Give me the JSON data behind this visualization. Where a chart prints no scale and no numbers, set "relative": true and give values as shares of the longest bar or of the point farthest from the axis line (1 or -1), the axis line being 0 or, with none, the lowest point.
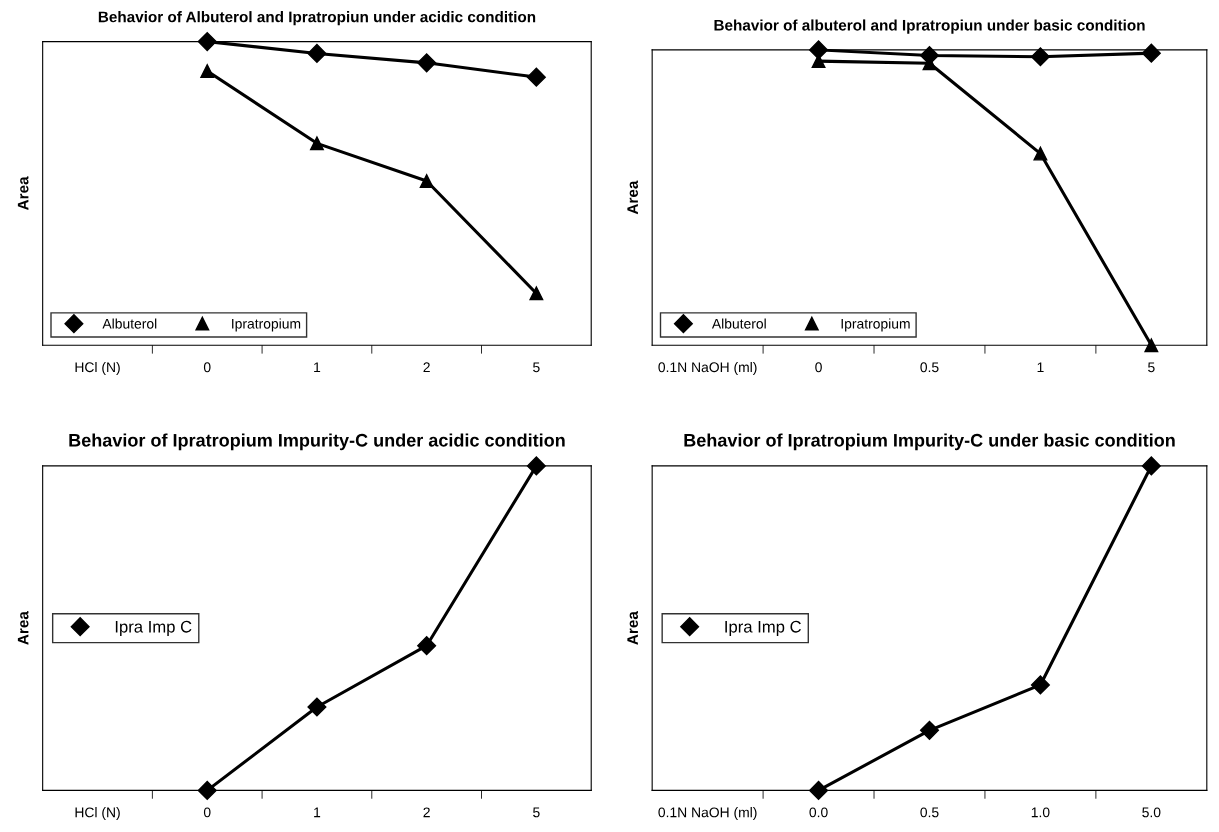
{
  "chart_data": [
    {
      "type": "line",
      "title": "Behavior of Albuterol and Ipratropiun under acidic condition",
      "ylabel": "Area",
      "relative": true,
      "categories": [
        "HCl (N)",
        "0",
        "1",
        "2",
        "5"
      ],
      "series": [
        {
          "name": "Albuterol",
          "color": "#000000",
          "marker": "diamond",
          "values": [
            null,
            1,
            0.961,
            0.93,
            0.883
          ]
        },
        {
          "name": "Ipratropium",
          "color": "#000000",
          "marker": "triangle",
          "values": [
            null,
            0.903,
            0.665,
            0.541,
            0.171
          ]
        }
      ],
      "legend": "bottom left",
      "grid": false
    },
    {
      "type": "line",
      "title": "Behavior of albuterol and Ipratropiun under basic condition",
      "ylabel": "Area",
      "relative": true,
      "categories": [
        "0.1N NaOH (ml)",
        "0",
        "0.5",
        "1",
        "5"
      ],
      "series": [
        {
          "name": "Albuterol",
          "color": "#000000",
          "marker": "diamond",
          "values": [
            null,
            1,
            0.981,
            0.977,
            0.989
          ]
        },
        {
          "name": "Ipratropium",
          "color": "#000000",
          "marker": "triangle",
          "values": [
            null,
            0.962,
            0.955,
            0.649,
            0
          ]
        }
      ],
      "legend": "bottom left",
      "grid": false
    },
    {
      "type": "line",
      "title": "Behavior of Ipratropium Impurity-C under acidic condition",
      "ylabel": "Area",
      "relative": true,
      "categories": [
        "HCl (N)",
        "0",
        "1",
        "2",
        "5"
      ],
      "series": [
        {
          "name": "Ipra Imp C",
          "color": "#000000",
          "marker": "diamond",
          "values": [
            null,
            0,
            0.257,
            0.446,
            1
          ]
        }
      ],
      "legend": "left",
      "grid": false
    },
    {
      "type": "line",
      "title": "Behavior of Ipratropium Impurity-C under basic condition",
      "ylabel": "Area",
      "relative": true,
      "categories": [
        "0.1N NaOH (ml)",
        "0.0",
        "0.5",
        "1.0",
        "5.0"
      ],
      "series": [
        {
          "name": "Ipra Imp C",
          "color": "#000000",
          "marker": "diamond",
          "values": [
            null,
            0,
            0.185,
            0.325,
            1
          ]
        }
      ],
      "legend": "left",
      "grid": false
    }
  ]
}
